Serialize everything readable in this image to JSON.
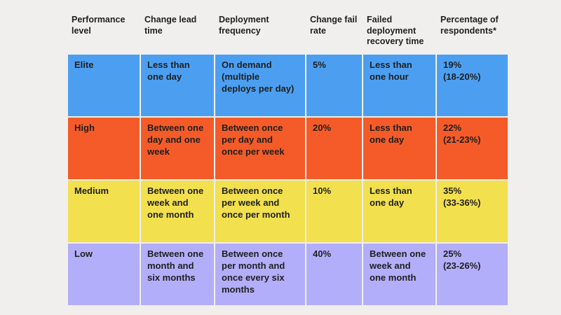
{
  "columns": [
    "Performance\nlevel",
    "Change lead\ntime",
    "Deployment\nfrequency",
    "Change fail\nrate",
    "Failed\ndeployment\nrecovery time",
    "Percentage of\nrespondents*"
  ],
  "rows": [
    {
      "level": "Elite",
      "change_lead_time": "Less than\none day",
      "deployment_frequency": "On demand\n(multiple\ndeploys per day)",
      "change_fail_rate": "5%",
      "recovery_time": "Less than\none hour",
      "percentage": "19%\n(18-20%)",
      "color": "#4c9ff0"
    },
    {
      "level": "High",
      "change_lead_time": "Between one\nday and one\nweek",
      "deployment_frequency": "Between once\nper day and\nonce per week",
      "change_fail_rate": "20%",
      "recovery_time": "Less than\none day",
      "percentage": "22%\n(21-23%)",
      "color": "#f45b28"
    },
    {
      "level": "Medium",
      "change_lead_time": "Between one\nweek and\none month",
      "deployment_frequency": "Between once\nper week and\nonce per month",
      "change_fail_rate": "10%",
      "recovery_time": "Less than\none day",
      "percentage": "35%\n(33-36%)",
      "color": "#f2e04e"
    },
    {
      "level": "Low",
      "change_lead_time": "Between one\nmonth and\nsix months",
      "deployment_frequency": "Between once\nper month and\nonce every six\nmonths",
      "change_fail_rate": "40%",
      "recovery_time": "Between one\nweek and\none month",
      "percentage": "25%\n(23-26%)",
      "color": "#b3aefa"
    }
  ]
}
